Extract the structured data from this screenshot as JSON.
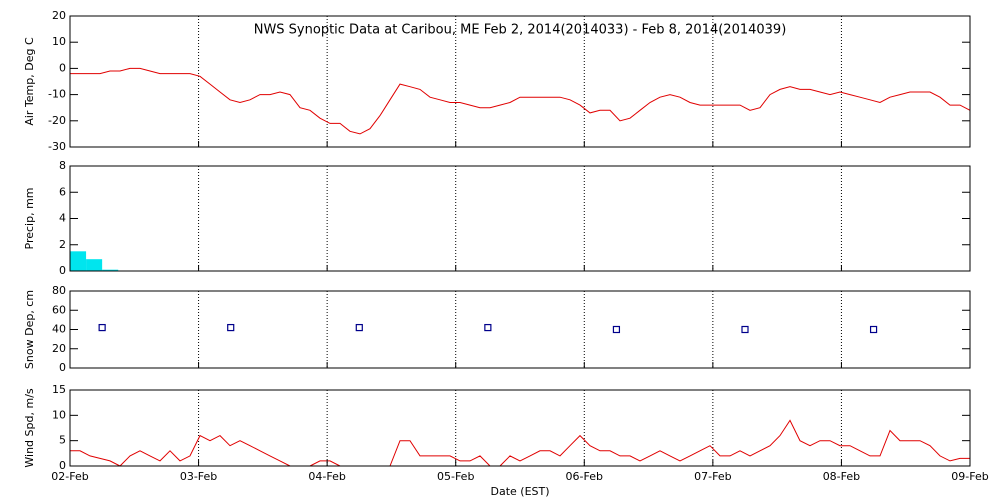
{
  "chart_data": [
    {
      "type": "line",
      "title": "NWS Synoptic Data at Caribou, ME   Feb  2, 2014(2014033) - Feb  8, 2014(2014039)",
      "ylabel": "Air Temp, Deg C",
      "color": "#e00000",
      "ylim": [
        -30,
        20
      ],
      "yticks": [
        -30,
        -20,
        -10,
        0,
        10,
        20
      ],
      "values": [
        -2,
        -2,
        -2,
        -2,
        -1,
        -1,
        0,
        0,
        -1,
        -2,
        -2,
        -2,
        -2,
        -3,
        -6,
        -9,
        -12,
        -13,
        -12,
        -10,
        -10,
        -9,
        -10,
        -15,
        -16,
        -19,
        -21,
        -21,
        -24,
        -25,
        -23,
        -18,
        -12,
        -6,
        -7,
        -8,
        -11,
        -12,
        -13,
        -13,
        -14,
        -15,
        -15,
        -14,
        -13,
        -11,
        -11,
        -11,
        -11,
        -11,
        -12,
        -14,
        -17,
        -16,
        -16,
        -20,
        -19,
        -16,
        -13,
        -11,
        -10,
        -11,
        -13,
        -14,
        -14,
        -14,
        -14,
        -14,
        -16,
        -15,
        -10,
        -8,
        -7,
        -8,
        -8,
        -9,
        -10,
        -9,
        -10,
        -11,
        -12,
        -13,
        -11,
        -10,
        -9,
        -9,
        -9,
        -11,
        -14,
        -14,
        -16
      ]
    },
    {
      "type": "bar",
      "ylabel": "Precip, mm",
      "color": "#00e5ee",
      "ylim": [
        0,
        8
      ],
      "yticks": [
        0,
        2,
        4,
        6,
        8
      ],
      "values": [
        1.5,
        0.9,
        0.1,
        0,
        0,
        0,
        0,
        0,
        0,
        0,
        0,
        0,
        0,
        0,
        0,
        0,
        0,
        0,
        0,
        0,
        0,
        0,
        0,
        0,
        0,
        0,
        0,
        0,
        0,
        0,
        0,
        0,
        0,
        0,
        0,
        0,
        0,
        0,
        0,
        0,
        0,
        0,
        0,
        0,
        0,
        0,
        0,
        0,
        0,
        0,
        0,
        0,
        0,
        0,
        0,
        0
      ]
    },
    {
      "type": "scatter",
      "ylabel": "Snow Dep, cm",
      "color": "#00008b",
      "ylim": [
        0,
        80
      ],
      "yticks": [
        0,
        20,
        40,
        60,
        80
      ],
      "values": [
        null,
        null,
        42,
        null,
        null,
        null,
        null,
        null,
        null,
        null,
        42,
        null,
        null,
        null,
        null,
        null,
        null,
        null,
        42,
        null,
        null,
        null,
        null,
        null,
        null,
        null,
        42,
        null,
        null,
        null,
        null,
        null,
        null,
        null,
        40,
        null,
        null,
        null,
        null,
        null,
        null,
        null,
        40,
        null,
        null,
        null,
        null,
        null,
        null,
        null,
        40,
        null,
        null,
        null,
        null,
        null
      ]
    },
    {
      "type": "line",
      "ylabel": "Wind Spd, m/s",
      "xlabel": "Date (EST)",
      "color": "#e00000",
      "ylim": [
        0,
        15
      ],
      "yticks": [
        0,
        5,
        10,
        15
      ],
      "xticks": [
        "02-Feb",
        "03-Feb",
        "04-Feb",
        "05-Feb",
        "06-Feb",
        "07-Feb",
        "08-Feb",
        "09-Feb"
      ],
      "values": [
        3,
        3,
        2,
        1.5,
        1,
        0,
        2,
        3,
        2,
        1,
        3,
        1,
        2,
        6,
        5,
        6,
        4,
        5,
        4,
        3,
        2,
        1,
        0,
        0,
        0,
        1,
        1,
        0,
        0,
        0,
        0,
        0,
        0,
        5,
        5,
        2,
        2,
        2,
        2,
        1,
        1,
        2,
        0,
        0,
        2,
        1,
        2,
        3,
        3,
        2,
        4,
        6,
        4,
        3,
        3,
        2,
        2,
        1,
        2,
        3,
        2,
        1,
        2,
        3,
        4,
        2,
        2,
        3,
        2,
        3,
        4,
        6,
        9,
        5,
        4,
        5,
        5,
        4,
        4,
        3,
        2,
        2,
        7,
        5,
        5,
        5,
        4,
        2,
        1,
        1.5,
        1.5
      ]
    }
  ]
}
